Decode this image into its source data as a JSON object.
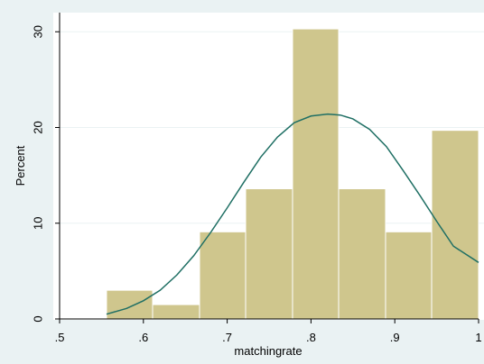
{
  "chart_data": {
    "type": "bar",
    "subtype": "histogram",
    "title": "",
    "xlabel": "matchingrate",
    "ylabel": "Percent",
    "xlim": [
      0.5,
      1.0
    ],
    "ylim": [
      0,
      32
    ],
    "x_ticks": [
      0.5,
      0.6,
      0.7,
      0.8,
      0.9,
      1.0
    ],
    "x_tick_labels": [
      ".5",
      ".6",
      ".7",
      ".8",
      ".9",
      "1"
    ],
    "y_ticks": [
      0,
      10,
      20,
      30
    ],
    "y_tick_labels": [
      "0",
      "10",
      "20",
      "30"
    ],
    "bins": [
      {
        "start": 0.556,
        "end": 0.611,
        "value": 3.0
      },
      {
        "start": 0.611,
        "end": 0.667,
        "value": 1.5
      },
      {
        "start": 0.667,
        "end": 0.722,
        "value": 9.1
      },
      {
        "start": 0.722,
        "end": 0.778,
        "value": 13.6
      },
      {
        "start": 0.778,
        "end": 0.833,
        "value": 30.3
      },
      {
        "start": 0.833,
        "end": 0.889,
        "value": 13.6
      },
      {
        "start": 0.889,
        "end": 0.944,
        "value": 9.1
      },
      {
        "start": 0.944,
        "end": 1.0,
        "value": 19.7
      }
    ],
    "overlay": {
      "type": "line",
      "description": "normal density curve",
      "x": [
        0.556,
        0.58,
        0.6,
        0.62,
        0.64,
        0.66,
        0.68,
        0.7,
        0.72,
        0.74,
        0.76,
        0.78,
        0.8,
        0.82,
        0.835,
        0.85,
        0.87,
        0.89,
        0.91,
        0.93,
        0.95,
        0.97,
        1.0
      ],
      "y": [
        0.5,
        1.1,
        1.9,
        3.0,
        4.6,
        6.6,
        9.0,
        11.6,
        14.3,
        16.9,
        19.0,
        20.5,
        21.2,
        21.4,
        21.3,
        20.9,
        19.8,
        18.0,
        15.5,
        12.9,
        10.2,
        7.6,
        5.9
      ]
    },
    "grid": true,
    "legend": "none"
  },
  "style": {
    "background": "#eaf2f3",
    "plot_background": "#ffffff",
    "bar_fill": "#cfc68d",
    "bar_edge": "#ffffff",
    "curve_color": "#1f6f64",
    "axis_color": "#000000",
    "grid_color": "#eaf2f3"
  }
}
